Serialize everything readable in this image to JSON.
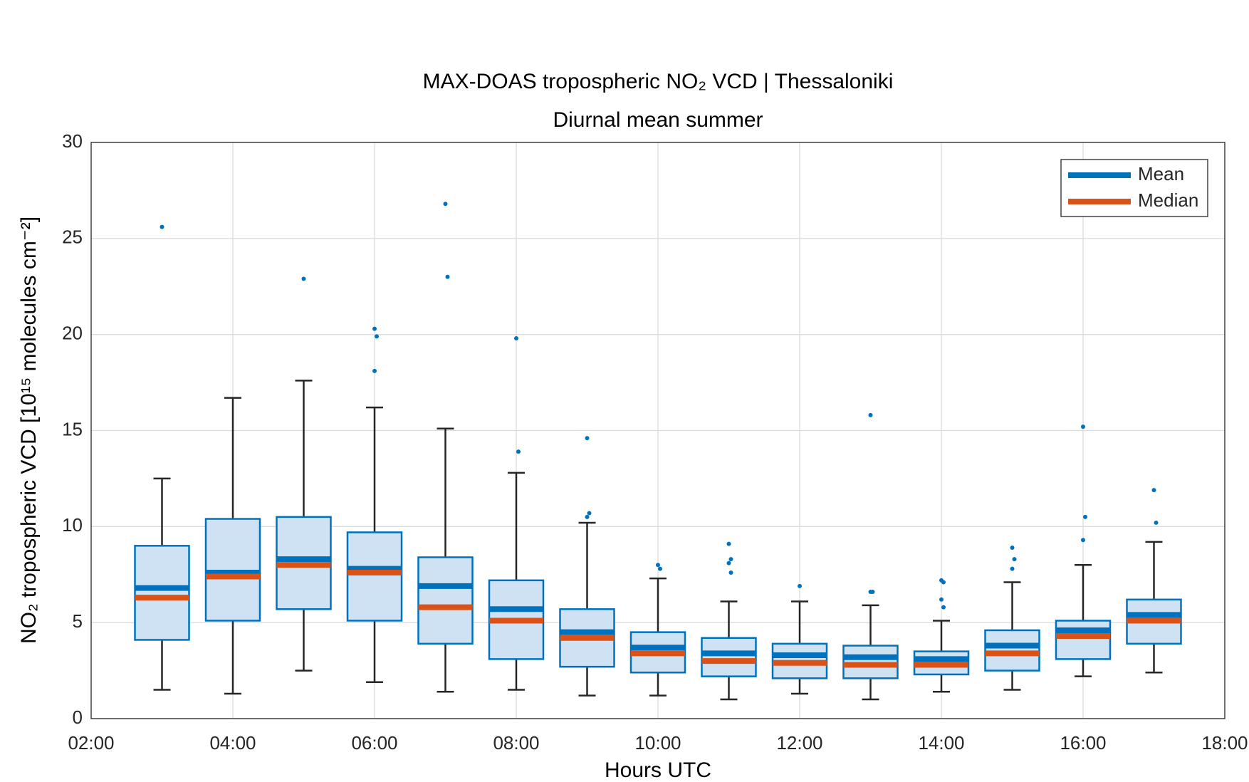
{
  "chart_data": {
    "type": "box",
    "title": "MAX-DOAS tropospheric NO₂ VCD | Thessaloniki",
    "subtitle": "Diurnal mean summer",
    "x_label": "Hours UTC",
    "y_label": "NO₂ tropospheric VCD [10¹⁵ molecules cm⁻²]",
    "xlim": [
      2,
      18
    ],
    "xticks": [
      {
        "value": 2,
        "label": "02:00"
      },
      {
        "value": 4,
        "label": "04:00"
      },
      {
        "value": 6,
        "label": "06:00"
      },
      {
        "value": 8,
        "label": "08:00"
      },
      {
        "value": 10,
        "label": "10:00"
      },
      {
        "value": 12,
        "label": "12:00"
      },
      {
        "value": 14,
        "label": "14:00"
      },
      {
        "value": 16,
        "label": "16:00"
      },
      {
        "value": 18,
        "label": "18:00"
      }
    ],
    "ylim": [
      0,
      30
    ],
    "yticks": [
      0,
      5,
      10,
      15,
      20,
      25,
      30
    ],
    "grid": true,
    "legend_position": "northeast",
    "box_color": "#0072bd",
    "box_fill": "#cfe2f3",
    "whisker_color": "#262626",
    "series": [
      {
        "name": "Mean",
        "color": "#0072bd"
      },
      {
        "name": "Median",
        "color": "#d95319"
      }
    ],
    "boxes": [
      {
        "x": 3,
        "whisker_low": 1.5,
        "q1": 4.1,
        "median": 6.3,
        "mean": 6.8,
        "q3": 9.0,
        "whisker_high": 12.5,
        "outliers": [
          25.6
        ]
      },
      {
        "x": 4,
        "whisker_low": 1.3,
        "q1": 5.1,
        "median": 7.4,
        "mean": 7.6,
        "q3": 10.4,
        "whisker_high": 16.7,
        "outliers": []
      },
      {
        "x": 5,
        "whisker_low": 2.5,
        "q1": 5.7,
        "median": 8.0,
        "mean": 8.3,
        "q3": 10.5,
        "whisker_high": 17.6,
        "outliers": [
          22.9
        ]
      },
      {
        "x": 6,
        "whisker_low": 1.9,
        "q1": 5.1,
        "median": 7.6,
        "mean": 7.8,
        "q3": 9.7,
        "whisker_high": 16.2,
        "outliers": [
          20.3,
          19.9,
          18.1
        ]
      },
      {
        "x": 7,
        "whisker_low": 1.4,
        "q1": 3.9,
        "median": 5.8,
        "mean": 6.9,
        "q3": 8.4,
        "whisker_high": 15.1,
        "outliers": [
          26.8,
          23.0
        ]
      },
      {
        "x": 8,
        "whisker_low": 1.5,
        "q1": 3.1,
        "median": 5.1,
        "mean": 5.7,
        "q3": 7.2,
        "whisker_high": 12.8,
        "outliers": [
          19.8,
          13.9
        ]
      },
      {
        "x": 9,
        "whisker_low": 1.2,
        "q1": 2.7,
        "median": 4.2,
        "mean": 4.5,
        "q3": 5.7,
        "whisker_high": 10.2,
        "outliers": [
          14.6,
          10.7,
          10.5
        ]
      },
      {
        "x": 10,
        "whisker_low": 1.2,
        "q1": 2.4,
        "median": 3.4,
        "mean": 3.7,
        "q3": 4.5,
        "whisker_high": 7.3,
        "outliers": [
          8.0,
          7.8
        ]
      },
      {
        "x": 11,
        "whisker_low": 1.0,
        "q1": 2.2,
        "median": 3.0,
        "mean": 3.4,
        "q3": 4.2,
        "whisker_high": 6.1,
        "outliers": [
          9.1,
          8.3,
          8.1,
          7.6
        ]
      },
      {
        "x": 12,
        "whisker_low": 1.3,
        "q1": 2.1,
        "median": 2.9,
        "mean": 3.3,
        "q3": 3.9,
        "whisker_high": 6.1,
        "outliers": [
          6.9
        ]
      },
      {
        "x": 13,
        "whisker_low": 1.0,
        "q1": 2.1,
        "median": 2.8,
        "mean": 3.2,
        "q3": 3.8,
        "whisker_high": 5.9,
        "outliers": [
          15.8,
          6.6,
          6.6
        ]
      },
      {
        "x": 14,
        "whisker_low": 1.4,
        "q1": 2.3,
        "median": 2.8,
        "mean": 3.1,
        "q3": 3.5,
        "whisker_high": 5.1,
        "outliers": [
          7.2,
          7.1,
          6.2,
          5.8
        ]
      },
      {
        "x": 15,
        "whisker_low": 1.5,
        "q1": 2.5,
        "median": 3.4,
        "mean": 3.8,
        "q3": 4.6,
        "whisker_high": 7.1,
        "outliers": [
          8.9,
          8.3,
          7.8
        ]
      },
      {
        "x": 16,
        "whisker_low": 2.2,
        "q1": 3.1,
        "median": 4.3,
        "mean": 4.6,
        "q3": 5.1,
        "whisker_high": 8.0,
        "outliers": [
          15.2,
          10.5,
          9.3
        ]
      },
      {
        "x": 17,
        "whisker_low": 2.4,
        "q1": 3.9,
        "median": 5.1,
        "mean": 5.4,
        "q3": 6.2,
        "whisker_high": 9.2,
        "outliers": [
          11.9,
          10.2
        ]
      }
    ]
  }
}
